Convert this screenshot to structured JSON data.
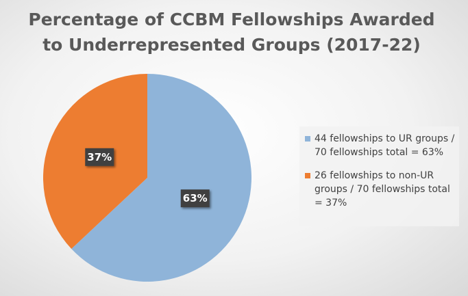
{
  "chart_data": {
    "type": "pie",
    "title": [
      "Percentage of CCBM Fellowships Awarded",
      "to Underrepresented Groups (2017-22)"
    ],
    "categories": [
      "44 fellowships to UR groups / 70 fellowships total = 63%",
      "26 fellowships to non-UR groups / 70 fellowships total = 37%"
    ],
    "values": [
      63,
      37
    ],
    "value_labels": [
      "63%",
      "37%"
    ],
    "colors": [
      "#8fb4d9",
      "#ed7d31"
    ],
    "legend": "right"
  }
}
